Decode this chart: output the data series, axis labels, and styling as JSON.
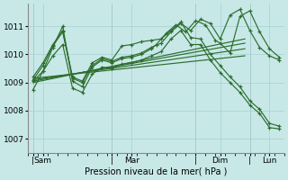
{
  "background_color": "#c8e8e8",
  "grid_color": "#aad4d4",
  "line_color": "#2d6e2d",
  "xlabel": "Pression niveau de la mer( hPa )",
  "ylim": [
    1006.5,
    1011.8
  ],
  "yticks": [
    1007,
    1008,
    1009,
    1010,
    1011
  ],
  "xlim": [
    0,
    26
  ],
  "vlines": [
    0.5,
    8.5,
    17.0,
    22.5
  ],
  "xtick_positions": [
    0.5,
    1.5,
    8.5,
    10.5,
    17.0,
    19.5,
    22.5,
    24.5
  ],
  "xtick_labels": [
    "|",
    "Sam",
    "|",
    "Mar",
    "|",
    "Dim",
    "|",
    "Lun"
  ],
  "series_A_x": [
    0.5,
    1.5,
    2.5,
    3.5,
    4.5,
    5.5,
    6.5,
    7.5,
    8.5,
    9.5,
    10.5,
    11.5,
    12.5,
    13.0,
    14.0,
    15.0,
    16.0,
    17.0,
    18.0,
    19.0,
    19.5,
    20.5,
    21.5,
    22.5,
    23.5,
    24.5,
    25.5
  ],
  "series_A_y": [
    1009.05,
    1009.4,
    1010.25,
    1011.0,
    1009.05,
    1008.85,
    1009.55,
    1009.8,
    1009.7,
    1009.85,
    1009.9,
    1010.0,
    1010.2,
    1010.35,
    1010.75,
    1011.05,
    1010.8,
    1011.2,
    1011.05,
    1010.5,
    1010.4,
    1010.05,
    1011.35,
    1011.55,
    1010.8,
    1010.2,
    1009.9
  ],
  "series_B_x": [
    0.5,
    1.5,
    2.5,
    3.5,
    4.5,
    5.5,
    6.5,
    7.5,
    8.5,
    9.5,
    10.5,
    11.5,
    12.5,
    13.5,
    14.5,
    15.5,
    16.5,
    17.5,
    18.5,
    19.5,
    20.5,
    21.5,
    22.5,
    23.5,
    24.5,
    25.5
  ],
  "series_B_y": [
    1009.1,
    1009.6,
    1010.3,
    1010.8,
    1009.15,
    1009.0,
    1009.6,
    1009.85,
    1009.75,
    1009.9,
    1009.95,
    1010.05,
    1010.25,
    1010.4,
    1010.8,
    1011.1,
    1010.85,
    1011.25,
    1011.1,
    1010.55,
    1011.4,
    1011.6,
    1010.85,
    1010.25,
    1009.95,
    1009.8
  ],
  "trend_lines": [
    {
      "x": [
        0.5,
        22.0
      ],
      "y": [
        1009.0,
        1010.55
      ]
    },
    {
      "x": [
        0.5,
        22.0
      ],
      "y": [
        1009.05,
        1010.4
      ]
    },
    {
      "x": [
        0.5,
        22.0
      ],
      "y": [
        1009.1,
        1010.2
      ]
    },
    {
      "x": [
        0.5,
        22.0
      ],
      "y": [
        1009.15,
        1009.95
      ]
    }
  ],
  "series_drop_x": [
    0.5,
    1.5,
    2.5,
    3.5,
    4.5,
    5.5,
    6.5,
    7.5,
    8.5,
    9.5,
    10.5,
    11.5,
    12.5,
    13.5,
    14.5,
    15.5,
    16.5,
    17.5,
    18.5,
    19.5,
    20.5,
    21.5,
    22.5,
    23.5,
    24.5,
    25.5
  ],
  "series_drop_y": [
    1009.2,
    1009.7,
    1010.35,
    1010.85,
    1009.2,
    1009.05,
    1009.7,
    1009.9,
    1009.8,
    1010.3,
    1010.35,
    1010.45,
    1010.5,
    1010.55,
    1010.85,
    1011.15,
    1010.6,
    1010.55,
    1010.0,
    1009.6,
    1009.2,
    1008.85,
    1008.35,
    1008.05,
    1007.55,
    1007.45
  ],
  "series_long_drop_x": [
    0.5,
    1.5,
    2.5,
    3.5,
    4.5,
    5.5,
    6.5,
    7.5,
    8.5,
    9.5,
    10.5,
    11.5,
    12.5,
    13.5,
    14.5,
    15.5,
    16.5,
    17.5,
    18.5,
    19.5,
    20.5,
    21.5,
    22.5,
    23.5,
    24.5,
    25.5
  ],
  "series_long_drop_y": [
    1008.75,
    1009.4,
    1009.95,
    1010.35,
    1008.8,
    1008.65,
    1009.3,
    1009.55,
    1009.5,
    1009.65,
    1009.7,
    1009.8,
    1009.95,
    1010.1,
    1010.55,
    1010.85,
    1010.35,
    1010.35,
    1009.8,
    1009.35,
    1009.0,
    1008.65,
    1008.2,
    1007.9,
    1007.4,
    1007.35
  ]
}
